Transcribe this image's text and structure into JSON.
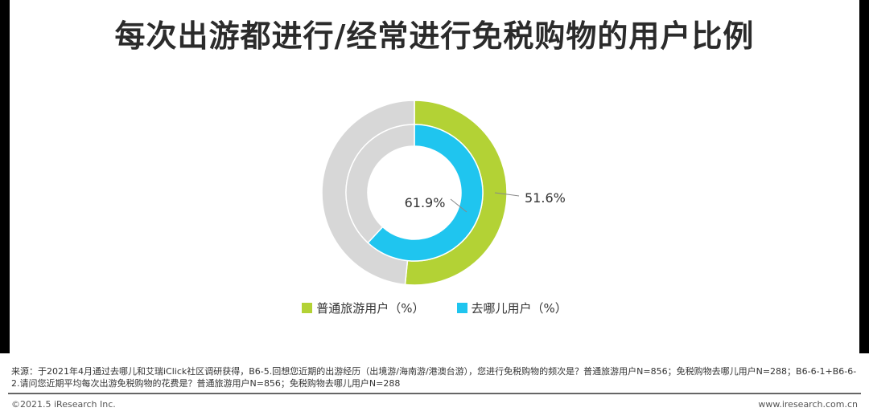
{
  "title": "每次出游都进行/经常进行免税购物的用户比例",
  "chart_data": {
    "type": "pie",
    "title": "每次出游都进行/经常进行免税购物的用户比例",
    "series": [
      {
        "name": "普通旅游用户（%）",
        "value": 51.6,
        "label": "51.6%",
        "color": "#b3d235",
        "ring": "outer"
      },
      {
        "name": "去哪儿用户（%）",
        "value": 61.9,
        "label": "61.9%",
        "color": "#1fc5ef",
        "ring": "inner"
      }
    ],
    "remainder_color": "#d7d7d7",
    "legend_position": "bottom"
  },
  "legend": [
    {
      "label": "普通旅游用户（%）",
      "color": "#b3d235"
    },
    {
      "label": "去哪儿用户（%）",
      "color": "#1fc5ef"
    }
  ],
  "footer": {
    "source": "来源：于2021年4月通过去哪儿和艾瑞iClick社区调研获得，B6-5.回想您近期的出游经历（出境游/海南游/港澳台游），您进行免税购物的频次是？普通旅游用户N=856；免税购物去哪儿用户N=288；B6-6-1+B6-6-2.请问您近期平均每次出游免税购物的花费是？普通旅游用户N=856；免税购物去哪儿用户N=288",
    "copyright": "©2021.5 iResearch Inc.",
    "website": "www.iresearch.com.cn"
  }
}
